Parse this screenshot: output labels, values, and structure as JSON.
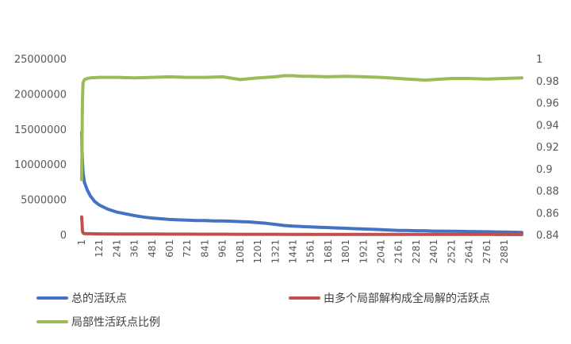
{
  "chart_data": {
    "type": "line",
    "title": "",
    "xlabel": "",
    "ylabel": "",
    "x_range": [
      1,
      3000
    ],
    "x_tick_labels": [
      "1",
      "121",
      "241",
      "361",
      "481",
      "601",
      "721",
      "841",
      "961",
      "1081",
      "1201",
      "1321",
      "1441",
      "1561",
      "1681",
      "1801",
      "1921",
      "2041",
      "2161",
      "2281",
      "2401",
      "2521",
      "2641",
      "2761",
      "2881"
    ],
    "y_left": {
      "range": [
        0,
        25000000
      ],
      "ticks": [
        "0",
        "5000000",
        "10000000",
        "15000000",
        "20000000",
        "25000000"
      ]
    },
    "y_right": {
      "range": [
        0.84,
        1.0
      ],
      "ticks": [
        "0.84",
        "0.86",
        "0.88",
        "0.9",
        "0.92",
        "0.94",
        "0.96",
        "0.98",
        "1"
      ]
    },
    "grid": false,
    "legend_position": "bottom",
    "series": [
      {
        "name": "总的活跃点",
        "axis": "left",
        "color": "#4472C4",
        "x": [
          1,
          3,
          6,
          10,
          20,
          40,
          60,
          90,
          121,
          181,
          241,
          301,
          361,
          421,
          481,
          541,
          601,
          661,
          721,
          781,
          841,
          901,
          961,
          1021,
          1081,
          1141,
          1201,
          1261,
          1321,
          1381,
          1441,
          1501,
          1561,
          1621,
          1681,
          1741,
          1801,
          1861,
          1921,
          1981,
          2041,
          2101,
          2161,
          2221,
          2281,
          2341,
          2401,
          2461,
          2521,
          2581,
          2641,
          2701,
          2761,
          2821,
          2881,
          2941,
          3000
        ],
        "values": [
          14500000,
          12000000,
          10500000,
          8800000,
          7400000,
          6300000,
          5500000,
          4700000,
          4200000,
          3600000,
          3200000,
          2950000,
          2700000,
          2500000,
          2350000,
          2250000,
          2150000,
          2100000,
          2050000,
          2000000,
          2000000,
          1950000,
          1950000,
          1900000,
          1850000,
          1800000,
          1700000,
          1600000,
          1450000,
          1300000,
          1200000,
          1150000,
          1100000,
          1050000,
          1000000,
          950000,
          900000,
          850000,
          800000,
          750000,
          700000,
          650000,
          600000,
          600000,
          550000,
          550000,
          500000,
          500000,
          480000,
          460000,
          440000,
          420000,
          400000,
          380000,
          360000,
          340000,
          320000
        ]
      },
      {
        "name": "由多个局部解构成全局解的活跃点",
        "axis": "left",
        "color": "#C0504D",
        "x": [
          1,
          3,
          6,
          10,
          20,
          60,
          121,
          241,
          361,
          481,
          601,
          721,
          841,
          961,
          1081,
          1201,
          1321,
          1441,
          1561,
          1681,
          1801,
          1921,
          2041,
          2161,
          2281,
          2401,
          2521,
          2641,
          2761,
          2881,
          3000
        ],
        "values": [
          2500000,
          1800000,
          600000,
          250000,
          150000,
          120000,
          100000,
          90000,
          80000,
          75000,
          70000,
          65000,
          60000,
          55000,
          50000,
          45000,
          40000,
          38000,
          35000,
          32000,
          30000,
          28000,
          26000,
          24000,
          22000,
          20000,
          19000,
          18000,
          17000,
          16000,
          15000
        ]
      },
      {
        "name": "局部性活跃点比例",
        "axis": "right",
        "color": "#9BBB59",
        "x": [
          1,
          3,
          6,
          10,
          20,
          40,
          60,
          121,
          241,
          361,
          481,
          601,
          721,
          841,
          961,
          1081,
          1201,
          1321,
          1381,
          1441,
          1501,
          1561,
          1681,
          1801,
          1921,
          2041,
          2161,
          2281,
          2341,
          2401,
          2521,
          2641,
          2761,
          2881,
          3000
        ],
        "values": [
          0.89,
          0.92,
          0.96,
          0.978,
          0.981,
          0.982,
          0.9825,
          0.983,
          0.983,
          0.9825,
          0.983,
          0.9835,
          0.983,
          0.983,
          0.9835,
          0.981,
          0.9825,
          0.9835,
          0.9845,
          0.9845,
          0.984,
          0.984,
          0.9835,
          0.984,
          0.9835,
          0.983,
          0.982,
          0.981,
          0.9805,
          0.981,
          0.982,
          0.982,
          0.9815,
          0.982,
          0.9825
        ]
      }
    ]
  }
}
